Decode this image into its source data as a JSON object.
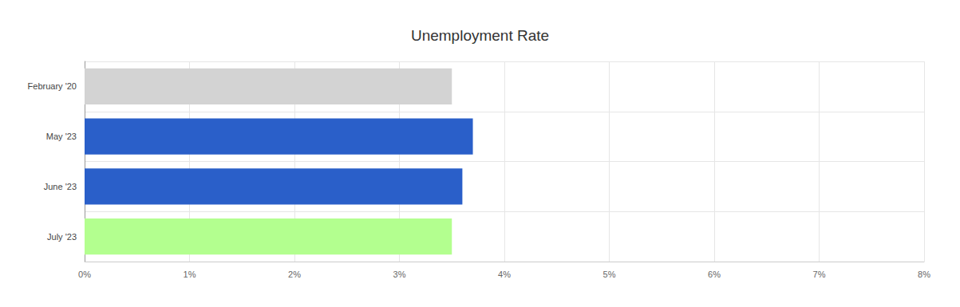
{
  "chart_data": {
    "type": "bar",
    "title": "Unemployment Rate",
    "orientation": "horizontal",
    "categories": [
      "February '20",
      "May '23",
      "June '23",
      "July '23"
    ],
    "values": [
      3.5,
      3.7,
      3.6,
      3.5
    ],
    "colors": [
      "#d3d3d3",
      "#2a5fc9",
      "#2a5fc9",
      "#b3ff8f"
    ],
    "xlim": [
      0,
      8
    ],
    "xticks": [
      {
        "value": 0,
        "label": "0%"
      },
      {
        "value": 1,
        "label": "1%"
      },
      {
        "value": 2,
        "label": "2%"
      },
      {
        "value": 3,
        "label": "3%"
      },
      {
        "value": 4,
        "label": "4%"
      },
      {
        "value": 5,
        "label": "5%"
      },
      {
        "value": 6,
        "label": "6%"
      },
      {
        "value": 7,
        "label": "7%"
      },
      {
        "value": 8,
        "label": "8%"
      }
    ],
    "grid": true
  }
}
